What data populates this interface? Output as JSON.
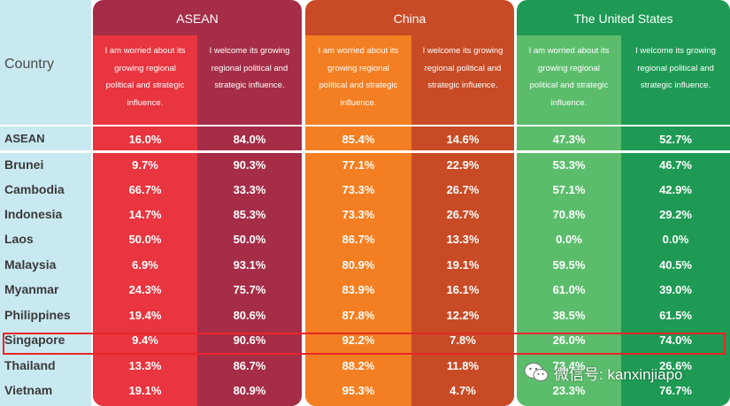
{
  "chart_data": {
    "type": "table",
    "title": "",
    "row_header": "Country",
    "groups": [
      {
        "name": "ASEAN",
        "columns": [
          "I am worried about its growing regional political and strategic influence.",
          "I welcome its growing regional political and strategic influence."
        ]
      },
      {
        "name": "China",
        "columns": [
          "I am worried about its growing regional political and strategic influence.",
          "I welcome its growing regional political and strategic influence."
        ]
      },
      {
        "name": "The United States",
        "columns": [
          "I am worried about its growing regional political and strategic influence.",
          "I welcome its growing regional political and strategic influence."
        ]
      }
    ],
    "rows": [
      {
        "country": "ASEAN",
        "values": [
          "16.0%",
          "84.0%",
          "85.4%",
          "14.6%",
          "47.3%",
          "52.7%"
        ]
      },
      {
        "country": "Brunei",
        "values": [
          "9.7%",
          "90.3%",
          "77.1%",
          "22.9%",
          "53.3%",
          "46.7%"
        ]
      },
      {
        "country": "Cambodia",
        "values": [
          "66.7%",
          "33.3%",
          "73.3%",
          "26.7%",
          "57.1%",
          "42.9%"
        ]
      },
      {
        "country": "Indonesia",
        "values": [
          "14.7%",
          "85.3%",
          "73.3%",
          "26.7%",
          "70.8%",
          "29.2%"
        ]
      },
      {
        "country": "Laos",
        "values": [
          "50.0%",
          "50.0%",
          "86.7%",
          "13.3%",
          "0.0%",
          "0.0%"
        ]
      },
      {
        "country": "Malaysia",
        "values": [
          "6.9%",
          "93.1%",
          "80.9%",
          "19.1%",
          "59.5%",
          "40.5%"
        ]
      },
      {
        "country": "Myanmar",
        "values": [
          "24.3%",
          "75.7%",
          "83.9%",
          "16.1%",
          "61.0%",
          "39.0%"
        ]
      },
      {
        "country": "Philippines",
        "values": [
          "19.4%",
          "80.6%",
          "87.8%",
          "12.2%",
          "38.5%",
          "61.5%"
        ]
      },
      {
        "country": "Singapore",
        "values": [
          "9.4%",
          "90.6%",
          "92.2%",
          "7.8%",
          "26.0%",
          "74.0%"
        ]
      },
      {
        "country": "Thailand",
        "values": [
          "13.3%",
          "86.7%",
          "88.2%",
          "11.8%",
          "73.4%",
          "26.6%"
        ]
      },
      {
        "country": "Vietnam",
        "values": [
          "19.1%",
          "80.9%",
          "95.3%",
          "4.7%",
          "23.3%",
          "76.7%"
        ]
      }
    ],
    "highlighted_row": "Singapore"
  },
  "header": {
    "country_label": "Country",
    "asean": "ASEAN",
    "china": "China",
    "us": "The United States",
    "worried": "I am worried about its growing regional political and strategic influence.",
    "welcome": "I welcome its growing regional political and strategic influence."
  },
  "colors": {
    "country_bg": "#c9e9f1",
    "asean_title": "#a52d47",
    "asean_worried": "#e8353f",
    "asean_welcome": "#a52d47",
    "china_title": "#c84b26",
    "china_worried": "#f47f22",
    "china_welcome": "#c84b26",
    "us_title": "#1e9a54",
    "us_worried": "#5bbd6c",
    "us_welcome": "#1e9a54",
    "highlight": "#e8262a"
  },
  "watermark": {
    "text": "微信号: kanxinjiapo",
    "icon": "wechat-icon"
  }
}
